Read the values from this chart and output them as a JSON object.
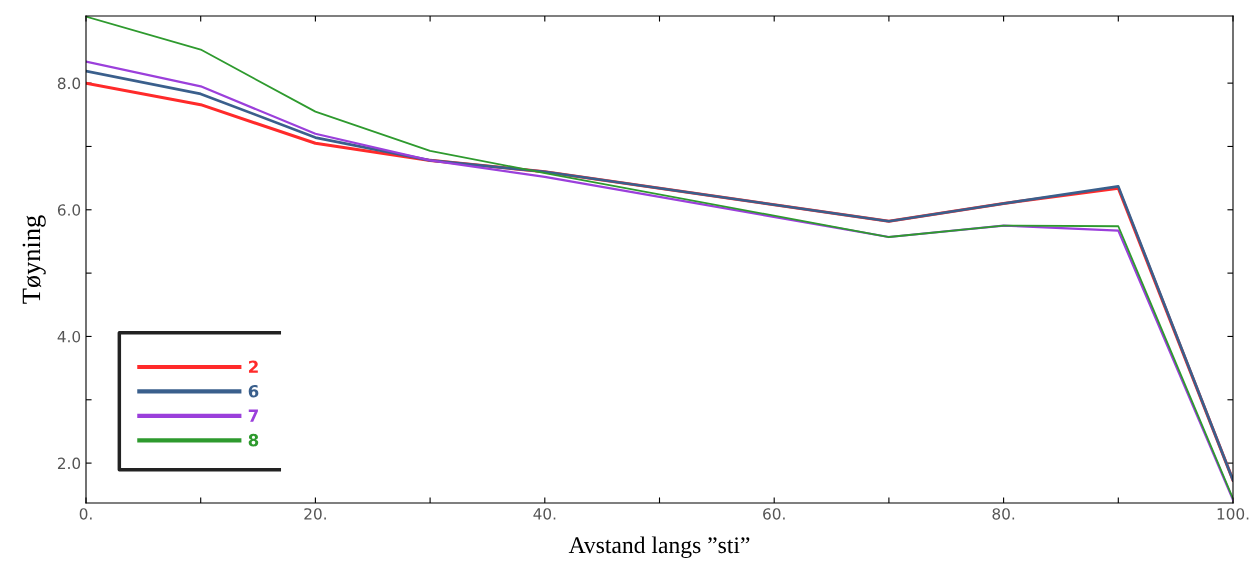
{
  "chart_data": {
    "type": "line",
    "xlabel": "Avstand langs ”sti”",
    "ylabel": "Tøyning",
    "x": [
      0,
      10,
      20,
      30,
      40,
      70,
      80,
      90,
      100
    ],
    "series": [
      {
        "name": "2",
        "color": "#ff2a2a",
        "values": [
          8.0,
          7.66,
          7.05,
          6.78,
          6.6,
          5.82,
          6.1,
          6.34,
          1.73
        ]
      },
      {
        "name": "6",
        "color": "#3a5f8c",
        "values": [
          8.19,
          7.83,
          7.14,
          6.78,
          6.6,
          5.82,
          6.1,
          6.37,
          1.73
        ]
      },
      {
        "name": "7",
        "color": "#9b3fdb",
        "values": [
          8.34,
          7.95,
          7.2,
          6.78,
          6.52,
          5.57,
          5.75,
          5.67,
          1.42
        ]
      },
      {
        "name": "8",
        "color": "#2e9a2e",
        "values": [
          9.05,
          8.53,
          7.55,
          6.93,
          6.58,
          5.57,
          5.75,
          5.74,
          1.44
        ]
      }
    ],
    "xlim": [
      0,
      100
    ],
    "ylim": [
      1.37,
      9.06
    ],
    "xticks": [
      {
        "value": 0,
        "label": "0."
      },
      {
        "value": 10,
        "label": null
      },
      {
        "value": 20,
        "label": "20."
      },
      {
        "value": 30,
        "label": null
      },
      {
        "value": 40,
        "label": "40."
      },
      {
        "value": 50,
        "label": null
      },
      {
        "value": 60,
        "label": "60."
      },
      {
        "value": 70,
        "label": null
      },
      {
        "value": 80,
        "label": "80."
      },
      {
        "value": 90,
        "label": null
      },
      {
        "value": 100,
        "label": "100."
      }
    ],
    "yticks": [
      {
        "value": 2,
        "label": "2.0"
      },
      {
        "value": 3,
        "label": null
      },
      {
        "value": 4,
        "label": "4.0"
      },
      {
        "value": 5,
        "label": null
      },
      {
        "value": 6,
        "label": "6.0"
      },
      {
        "value": 7,
        "label": null
      },
      {
        "value": 8,
        "label": "8.0"
      }
    ],
    "grid": false,
    "legend": "bottom left",
    "marker": "none",
    "line_style": "solid"
  }
}
